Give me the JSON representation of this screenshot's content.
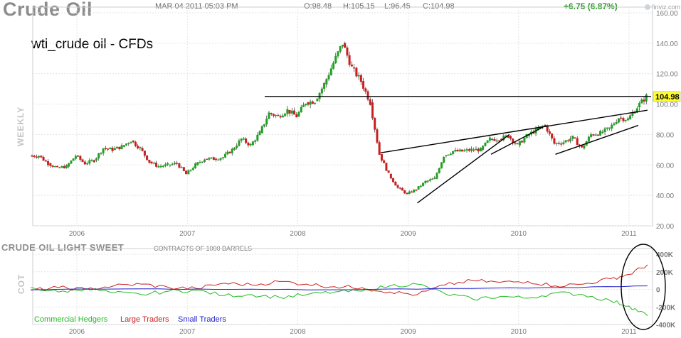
{
  "header": {
    "title": "Crude Oil",
    "datetime": "MAR 04 2011 05:03 PM",
    "open": "O:98.48",
    "high": "H:105.15",
    "low": "L:96.45",
    "close": "C:104.98",
    "change": "+6.75 (6.87%)",
    "logo_text": "finviz.com"
  },
  "annotation_label": "wti_crude oil - CFDs",
  "price_panel_label": "WEEKLY",
  "cot_panel": {
    "title": "CRUDE OIL LIGHT SWEET",
    "note": "CONTRACTS OF 1000 BARRELS",
    "side_label": "COT",
    "legend": [
      {
        "name": "Commercial Hedgers",
        "color": "#22bb22"
      },
      {
        "name": "Large Traders",
        "color": "#cc2222"
      },
      {
        "name": "Small Traders",
        "color": "#2222cc"
      }
    ],
    "y_ticks": [
      "400K",
      "200K",
      "0",
      "-200K",
      "-400K"
    ]
  },
  "colors": {
    "up_candle": "#22a022",
    "down_candle": "#c81e1e",
    "grid": "#e3e3e3",
    "price_tag": "#ffff33",
    "ellipse": "#000000"
  },
  "chart_data": [
    {
      "type": "candlestick",
      "timeframe": "weekly",
      "x_tick_labels": [
        "2006",
        "2007",
        "2008",
        "2009",
        "2010",
        "2011"
      ],
      "y_tick_labels": [
        "20.00",
        "40.00",
        "60.00",
        "80.00",
        "100.00",
        "120.00",
        "140.00",
        "160.00"
      ],
      "ylim": [
        20,
        160
      ],
      "last_price_label": "104.98",
      "series": [
        {
          "name": "",
          "points": [
            {
              "x": "2005-08",
              "y": 66
            },
            {
              "x": "2005-09",
              "y": 66
            },
            {
              "x": "2005-10",
              "y": 61
            },
            {
              "x": "2005-11",
              "y": 58
            },
            {
              "x": "2005-12",
              "y": 59
            },
            {
              "x": "2006-01",
              "y": 66
            },
            {
              "x": "2006-02",
              "y": 61
            },
            {
              "x": "2006-03",
              "y": 63
            },
            {
              "x": "2006-04",
              "y": 71
            },
            {
              "x": "2006-05",
              "y": 70
            },
            {
              "x": "2006-06",
              "y": 72
            },
            {
              "x": "2006-07",
              "y": 76
            },
            {
              "x": "2006-08",
              "y": 71
            },
            {
              "x": "2006-09",
              "y": 62
            },
            {
              "x": "2006-10",
              "y": 59
            },
            {
              "x": "2006-11",
              "y": 60
            },
            {
              "x": "2006-12",
              "y": 61
            },
            {
              "x": "2007-01",
              "y": 54
            },
            {
              "x": "2007-02",
              "y": 60
            },
            {
              "x": "2007-03",
              "y": 64
            },
            {
              "x": "2007-04",
              "y": 64
            },
            {
              "x": "2007-05",
              "y": 65
            },
            {
              "x": "2007-06",
              "y": 70
            },
            {
              "x": "2007-07",
              "y": 77
            },
            {
              "x": "2007-08",
              "y": 73
            },
            {
              "x": "2007-09",
              "y": 81
            },
            {
              "x": "2007-10",
              "y": 94
            },
            {
              "x": "2007-11",
              "y": 92
            },
            {
              "x": "2007-12",
              "y": 96
            },
            {
              "x": "2008-01",
              "y": 92
            },
            {
              "x": "2008-02",
              "y": 101
            },
            {
              "x": "2008-03",
              "y": 102
            },
            {
              "x": "2008-04",
              "y": 113
            },
            {
              "x": "2008-05",
              "y": 127
            },
            {
              "x": "2008-06",
              "y": 140
            },
            {
              "x": "2008-07",
              "y": 124
            },
            {
              "x": "2008-08",
              "y": 115
            },
            {
              "x": "2008-09",
              "y": 101
            },
            {
              "x": "2008-10",
              "y": 67
            },
            {
              "x": "2008-11",
              "y": 54
            },
            {
              "x": "2008-12",
              "y": 45
            },
            {
              "x": "2009-01",
              "y": 41
            },
            {
              "x": "2009-02",
              "y": 44
            },
            {
              "x": "2009-03",
              "y": 49
            },
            {
              "x": "2009-04",
              "y": 51
            },
            {
              "x": "2009-05",
              "y": 66
            },
            {
              "x": "2009-06",
              "y": 69
            },
            {
              "x": "2009-07",
              "y": 69
            },
            {
              "x": "2009-08",
              "y": 70
            },
            {
              "x": "2009-09",
              "y": 70
            },
            {
              "x": "2009-10",
              "y": 77
            },
            {
              "x": "2009-11",
              "y": 77
            },
            {
              "x": "2009-12",
              "y": 79
            },
            {
              "x": "2010-01",
              "y": 73
            },
            {
              "x": "2010-02",
              "y": 79
            },
            {
              "x": "2010-03",
              "y": 83
            },
            {
              "x": "2010-04",
              "y": 86
            },
            {
              "x": "2010-05",
              "y": 74
            },
            {
              "x": "2010-06",
              "y": 75
            },
            {
              "x": "2010-07",
              "y": 78
            },
            {
              "x": "2010-08",
              "y": 71
            },
            {
              "x": "2010-09",
              "y": 80
            },
            {
              "x": "2010-10",
              "y": 81
            },
            {
              "x": "2010-11",
              "y": 84
            },
            {
              "x": "2010-12",
              "y": 91
            },
            {
              "x": "2011-01",
              "y": 90
            },
            {
              "x": "2011-02",
              "y": 98
            },
            {
              "x": "2011-03",
              "y": 104.98
            }
          ]
        }
      ],
      "annotations": [
        {
          "type": "horizontal-line",
          "y": 105
        },
        {
          "type": "trend-line",
          "from": {
            "x": "2008-10",
            "y": 68
          },
          "to": {
            "x": "2011-03",
            "y": 96
          }
        },
        {
          "type": "trend-line",
          "from": {
            "x": "2009-02",
            "y": 35
          },
          "to": {
            "x": "2009-12",
            "y": 80
          }
        },
        {
          "type": "trend-line",
          "from": {
            "x": "2009-10",
            "y": 67
          },
          "to": {
            "x": "2010-04",
            "y": 86
          }
        },
        {
          "type": "trend-line",
          "from": {
            "x": "2010-05",
            "y": 67
          },
          "to": {
            "x": "2011-02",
            "y": 86
          }
        }
      ]
    },
    {
      "type": "line",
      "x_tick_labels": [
        "2006",
        "2007",
        "2008",
        "2009",
        "2010",
        "2011"
      ],
      "y_tick_labels": [
        "400K",
        "200K",
        "0",
        "-200K",
        "-400K"
      ],
      "ylim": [
        -400000,
        400000
      ],
      "series": [
        {
          "name": "Commercial Hedgers",
          "points": [
            {
              "x": "2005-08",
              "y": 20000
            },
            {
              "x": "2005-11",
              "y": -30000
            },
            {
              "x": "2006-02",
              "y": 10000
            },
            {
              "x": "2006-05",
              "y": -40000
            },
            {
              "x": "2006-08",
              "y": -60000
            },
            {
              "x": "2006-11",
              "y": -20000
            },
            {
              "x": "2007-02",
              "y": -10000
            },
            {
              "x": "2007-05",
              "y": -70000
            },
            {
              "x": "2007-08",
              "y": -60000
            },
            {
              "x": "2007-11",
              "y": -90000
            },
            {
              "x": "2008-02",
              "y": -60000
            },
            {
              "x": "2008-05",
              "y": -30000
            },
            {
              "x": "2008-08",
              "y": -20000
            },
            {
              "x": "2008-11",
              "y": 40000
            },
            {
              "x": "2009-02",
              "y": 60000
            },
            {
              "x": "2009-05",
              "y": -50000
            },
            {
              "x": "2009-08",
              "y": -110000
            },
            {
              "x": "2009-11",
              "y": -80000
            },
            {
              "x": "2010-02",
              "y": -100000
            },
            {
              "x": "2010-05",
              "y": -40000
            },
            {
              "x": "2010-08",
              "y": -60000
            },
            {
              "x": "2010-11",
              "y": -130000
            },
            {
              "x": "2011-01",
              "y": -190000
            },
            {
              "x": "2011-03",
              "y": -300000
            }
          ]
        },
        {
          "name": "Large Traders",
          "points": [
            {
              "x": "2005-08",
              "y": -10000
            },
            {
              "x": "2005-11",
              "y": 20000
            },
            {
              "x": "2006-02",
              "y": 0
            },
            {
              "x": "2006-05",
              "y": 40000
            },
            {
              "x": "2006-08",
              "y": 60000
            },
            {
              "x": "2006-11",
              "y": 20000
            },
            {
              "x": "2007-02",
              "y": 10000
            },
            {
              "x": "2007-05",
              "y": 70000
            },
            {
              "x": "2007-08",
              "y": 50000
            },
            {
              "x": "2007-11",
              "y": 90000
            },
            {
              "x": "2008-02",
              "y": 60000
            },
            {
              "x": "2008-05",
              "y": 30000
            },
            {
              "x": "2008-08",
              "y": 20000
            },
            {
              "x": "2008-11",
              "y": -30000
            },
            {
              "x": "2009-02",
              "y": -60000
            },
            {
              "x": "2009-05",
              "y": 50000
            },
            {
              "x": "2009-08",
              "y": 100000
            },
            {
              "x": "2009-11",
              "y": 80000
            },
            {
              "x": "2010-02",
              "y": 90000
            },
            {
              "x": "2010-05",
              "y": 40000
            },
            {
              "x": "2010-08",
              "y": 60000
            },
            {
              "x": "2010-11",
              "y": 120000
            },
            {
              "x": "2011-01",
              "y": 170000
            },
            {
              "x": "2011-03",
              "y": 280000
            }
          ]
        },
        {
          "name": "Small Traders",
          "points": [
            {
              "x": "2005-08",
              "y": -5000
            },
            {
              "x": "2006-06",
              "y": 5000
            },
            {
              "x": "2007-06",
              "y": 0
            },
            {
              "x": "2008-06",
              "y": -5000
            },
            {
              "x": "2009-06",
              "y": 10000
            },
            {
              "x": "2010-06",
              "y": 20000
            },
            {
              "x": "2011-03",
              "y": 40000
            }
          ]
        }
      ]
    }
  ]
}
